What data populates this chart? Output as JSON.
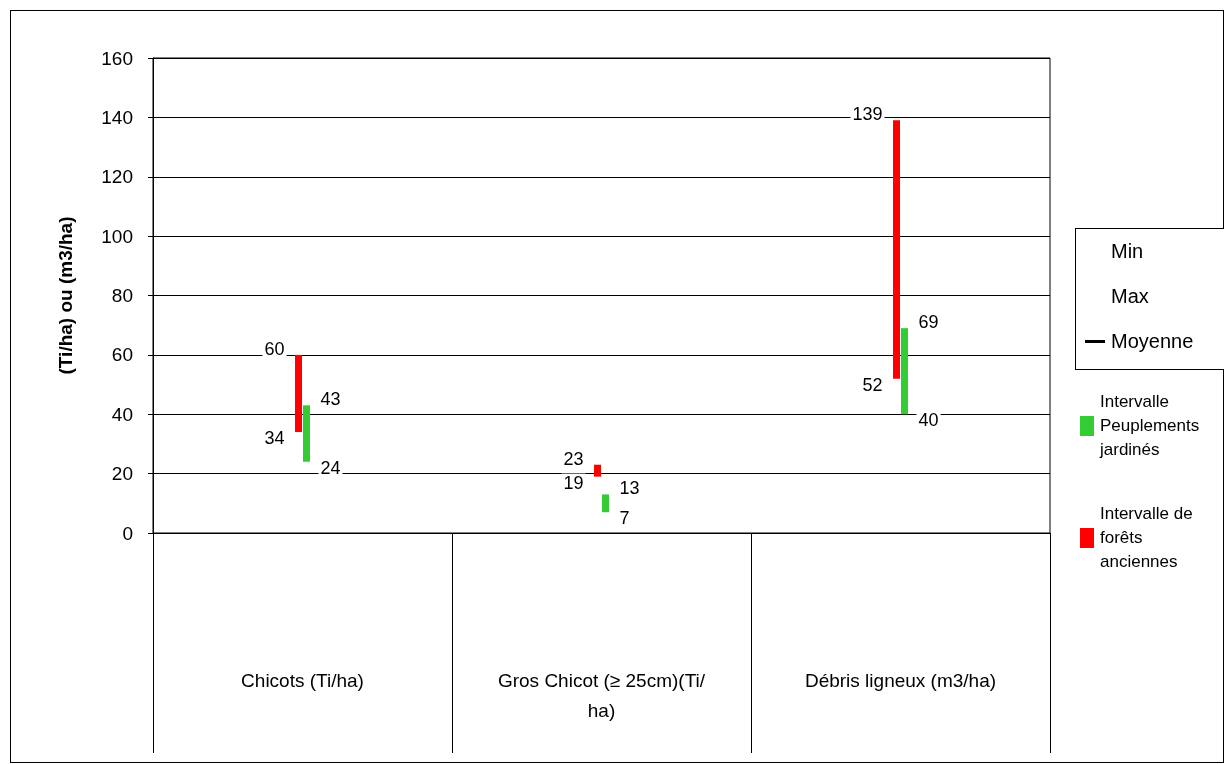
{
  "chart_data": {
    "type": "bar",
    "ylabel": "(Ti/ha) ou (m3/ha)",
    "categories": [
      "Chicots (Ti/ha)",
      "Gros Chicot (≥ 25cm)(Ti/ha)",
      "Débris ligneux (m3/ha)"
    ],
    "series": [
      {
        "name": "Intervalle de forêts anciennes",
        "color": "#ff0000",
        "base": [
          34,
          19,
          52
        ],
        "values": [
          26,
          4,
          87
        ]
      },
      {
        "name": "Intervalle Peuplements jardinés",
        "color": "#33cc33",
        "base": [
          24,
          7,
          40
        ],
        "values": [
          19,
          6,
          29
        ]
      }
    ],
    "ylim": [
      0,
      160
    ],
    "yticks": [
      0,
      20,
      40,
      60,
      80,
      100,
      120,
      140,
      160
    ],
    "grid": "y",
    "legend": "right",
    "annotations": [
      {
        "text": "60",
        "x": "Chicots (Ti/ha)",
        "y": 60
      },
      {
        "text": "34",
        "x": "Chicots (Ti/ha)",
        "y": 34
      },
      {
        "text": "43",
        "x": "Chicots (Ti/ha)",
        "y": 43
      },
      {
        "text": "24",
        "x": "Chicots (Ti/ha)",
        "y": 24
      },
      {
        "text": "23",
        "x": "Gros Chicot (≥ 25cm)(Ti/ha)",
        "y": 23
      },
      {
        "text": "19",
        "x": "Gros Chicot (≥ 25cm)(Ti/ha)",
        "y": 19
      },
      {
        "text": "13",
        "x": "Gros Chicot (≥ 25cm)(Ti/ha)",
        "y": 13
      },
      {
        "text": "7",
        "x": "Gros Chicot (≥ 25cm)(Ti/ha)",
        "y": 7
      },
      {
        "text": "139",
        "x": "Débris ligneux (m3/ha)",
        "y": 139
      },
      {
        "text": "52",
        "x": "Débris ligneux (m3/ha)",
        "y": 52
      },
      {
        "text": "69",
        "x": "Débris ligneux (m3/ha)",
        "y": 69
      },
      {
        "text": "40",
        "x": "Débris ligneux (m3/ha)",
        "y": 40
      },
      "Min",
      "Max",
      "Moyenne"
    ]
  }
}
